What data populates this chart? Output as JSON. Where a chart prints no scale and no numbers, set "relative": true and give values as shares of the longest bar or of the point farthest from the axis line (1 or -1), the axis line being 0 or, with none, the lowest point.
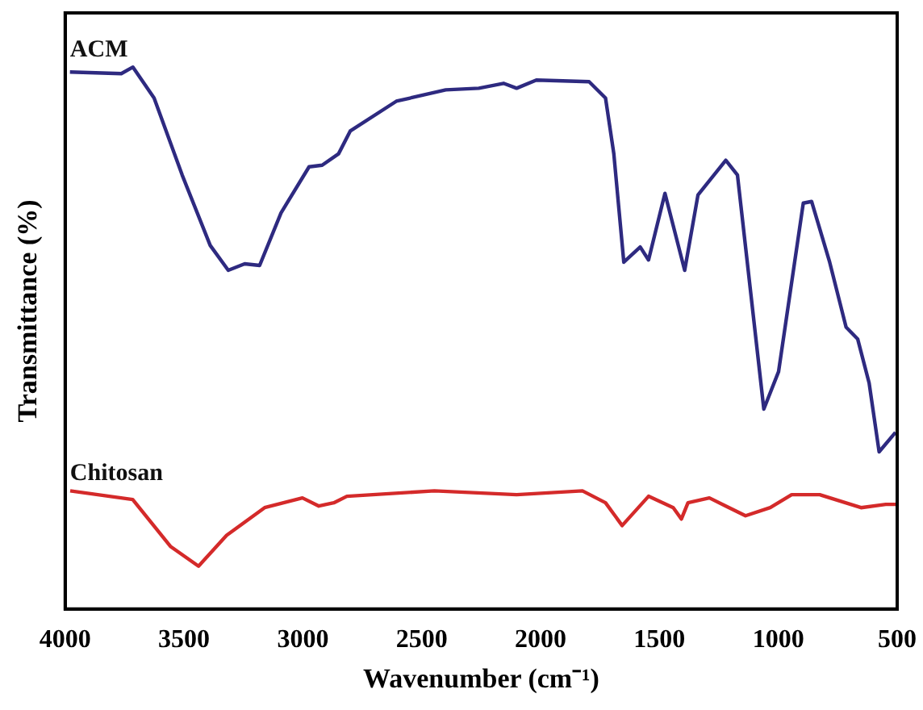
{
  "chart_data": {
    "type": "line",
    "relative": true,
    "xlabel": "Wavenumber (cm⁻¹)",
    "ylabel": "Transmittance (%)",
    "xlim": [
      4000,
      500
    ],
    "xticks": [
      4000,
      3500,
      3000,
      2500,
      2000,
      1500,
      1000,
      500
    ],
    "grid": false,
    "legend": false,
    "marker": "none",
    "line_style": "solid",
    "series": [
      {
        "name": "ACM",
        "color": "#2e2a80",
        "x": [
          3980,
          3764,
          3715,
          3626,
          3508,
          3390,
          3314,
          3245,
          3182,
          3092,
          2974,
          2919,
          2850,
          2801,
          2607,
          2399,
          2260,
          2156,
          2101,
          2018,
          1796,
          1727,
          1692,
          1650,
          1581,
          1546,
          1477,
          1394,
          1338,
          1221,
          1172,
          1061,
          999,
          895,
          860,
          784,
          715,
          666,
          618,
          576,
          507
        ],
        "values": [
          0.991,
          0.988,
          1,
          0.943,
          0.801,
          0.671,
          0.625,
          0.637,
          0.634,
          0.731,
          0.816,
          0.819,
          0.84,
          0.882,
          0.937,
          0.958,
          0.961,
          0.97,
          0.961,
          0.976,
          0.973,
          0.943,
          0.84,
          0.64,
          0.668,
          0.644,
          0.767,
          0.625,
          0.764,
          0.828,
          0.801,
          0.369,
          0.438,
          0.749,
          0.752,
          0.64,
          0.52,
          0.498,
          0.417,
          0.29,
          0.326
        ]
      },
      {
        "name": "Chitosan",
        "color": "#d42a2a",
        "x": [
          3979,
          3716,
          3556,
          3439,
          3321,
          3161,
          3002,
          2933,
          2870,
          2815,
          2447,
          2101,
          1824,
          1727,
          1657,
          1546,
          1442,
          1408,
          1380,
          1290,
          1221,
          1138,
          1034,
          944,
          826,
          652,
          548,
          500
        ],
        "values": [
          0.218,
          0.202,
          0.115,
          0.079,
          0.136,
          0.187,
          0.205,
          0.19,
          0.196,
          0.208,
          0.218,
          0.211,
          0.218,
          0.196,
          0.154,
          0.208,
          0.187,
          0.166,
          0.196,
          0.205,
          0.19,
          0.172,
          0.187,
          0.211,
          0.211,
          0.187,
          0.193,
          0.193
        ]
      }
    ]
  }
}
